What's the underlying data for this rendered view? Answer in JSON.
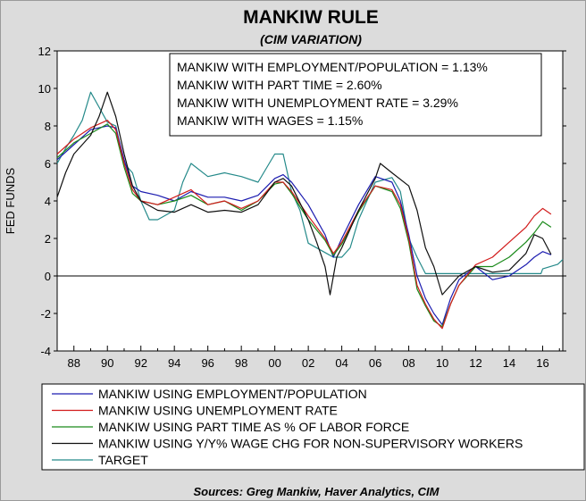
{
  "chart_data": {
    "type": "line",
    "title": "MANKIW RULE",
    "subtitle": "(CIM VARIATION)",
    "ylabel": "FED FUNDS",
    "xlabel": "",
    "source": "Sources:  Greg Mankiw, Haver Analytics, CIM",
    "ylim": [
      -4,
      12
    ],
    "xlim": [
      1987.0,
      2017.2
    ],
    "y_ticks": [
      12,
      10,
      8,
      6,
      4,
      2,
      0,
      -2,
      -4
    ],
    "x_ticks": [
      {
        "x": 1988,
        "label": "88"
      },
      {
        "x": 1990,
        "label": "90"
      },
      {
        "x": 1992,
        "label": "92"
      },
      {
        "x": 1994,
        "label": "94"
      },
      {
        "x": 1996,
        "label": "96"
      },
      {
        "x": 1998,
        "label": "98"
      },
      {
        "x": 2000,
        "label": "00"
      },
      {
        "x": 2002,
        "label": "02"
      },
      {
        "x": 2004,
        "label": "04"
      },
      {
        "x": 2006,
        "label": "06"
      },
      {
        "x": 2008,
        "label": "08"
      },
      {
        "x": 2010,
        "label": "10"
      },
      {
        "x": 2012,
        "label": "12"
      },
      {
        "x": 2014,
        "label": "14"
      },
      {
        "x": 2016,
        "label": "16"
      }
    ],
    "annotation": [
      "MANKIW WITH EMPLOYMENT/POPULATION = 1.13%",
      "MANKIW WITH PART TIME = 2.60%",
      "MANKIW WITH UNEMPLOYMENT RATE = 3.29%",
      "MANKIW WITH WAGES = 1.15%"
    ],
    "grid": false,
    "zero_line": true,
    "legend_position": "bottom",
    "series": [
      {
        "name": "MANKIW USING EMPLOYMENT/POPULATION",
        "color": "#1c1cb0",
        "points": [
          [
            1987.0,
            6.2
          ],
          [
            1988.0,
            7.0
          ],
          [
            1989.0,
            7.8
          ],
          [
            1990.0,
            8.0
          ],
          [
            1990.5,
            7.9
          ],
          [
            1991.0,
            6.2
          ],
          [
            1991.5,
            4.8
          ],
          [
            1992.0,
            4.5
          ],
          [
            1993.0,
            4.3
          ],
          [
            1994.0,
            4.0
          ],
          [
            1995.0,
            4.5
          ],
          [
            1996.0,
            4.2
          ],
          [
            1997.0,
            4.2
          ],
          [
            1998.0,
            4.0
          ],
          [
            1999.0,
            4.3
          ],
          [
            2000.0,
            5.2
          ],
          [
            2000.5,
            5.4
          ],
          [
            2001.0,
            5.0
          ],
          [
            2002.0,
            3.8
          ],
          [
            2003.0,
            2.2
          ],
          [
            2003.5,
            1.0
          ],
          [
            2004.0,
            2.0
          ],
          [
            2005.0,
            3.8
          ],
          [
            2006.0,
            5.3
          ],
          [
            2007.0,
            5.0
          ],
          [
            2007.5,
            4.0
          ],
          [
            2008.0,
            2.2
          ],
          [
            2008.5,
            0.0
          ],
          [
            2009.0,
            -1.2
          ],
          [
            2009.5,
            -2.0
          ],
          [
            2010.0,
            -2.6
          ],
          [
            2010.5,
            -1.2
          ],
          [
            2011.0,
            -0.2
          ],
          [
            2012.0,
            0.5
          ],
          [
            2013.0,
            -0.2
          ],
          [
            2014.0,
            0.0
          ],
          [
            2015.0,
            0.6
          ],
          [
            2015.5,
            1.0
          ],
          [
            2016.0,
            1.3
          ],
          [
            2016.5,
            1.13
          ]
        ]
      },
      {
        "name": "MANKIW USING UNEMPLOYMENT RATE",
        "color": "#d21c1c",
        "points": [
          [
            1987.0,
            6.5
          ],
          [
            1988.0,
            7.3
          ],
          [
            1989.0,
            7.9
          ],
          [
            1990.0,
            8.3
          ],
          [
            1990.5,
            7.8
          ],
          [
            1991.0,
            6.0
          ],
          [
            1991.5,
            4.6
          ],
          [
            1992.0,
            4.0
          ],
          [
            1993.0,
            3.8
          ],
          [
            1994.0,
            4.2
          ],
          [
            1995.0,
            4.6
          ],
          [
            1996.0,
            3.8
          ],
          [
            1997.0,
            4.0
          ],
          [
            1998.0,
            3.6
          ],
          [
            1999.0,
            4.0
          ],
          [
            2000.0,
            5.0
          ],
          [
            2000.5,
            5.0
          ],
          [
            2001.0,
            4.5
          ],
          [
            2002.0,
            3.2
          ],
          [
            2003.0,
            2.0
          ],
          [
            2003.5,
            1.2
          ],
          [
            2004.0,
            1.8
          ],
          [
            2005.0,
            3.5
          ],
          [
            2006.0,
            4.8
          ],
          [
            2007.0,
            4.6
          ],
          [
            2007.5,
            3.8
          ],
          [
            2008.0,
            2.0
          ],
          [
            2008.5,
            -0.5
          ],
          [
            2009.0,
            -1.5
          ],
          [
            2009.5,
            -2.3
          ],
          [
            2010.0,
            -2.8
          ],
          [
            2010.5,
            -1.5
          ],
          [
            2011.0,
            -0.5
          ],
          [
            2012.0,
            0.6
          ],
          [
            2013.0,
            1.0
          ],
          [
            2014.0,
            1.8
          ],
          [
            2015.0,
            2.6
          ],
          [
            2015.5,
            3.2
          ],
          [
            2016.0,
            3.6
          ],
          [
            2016.5,
            3.29
          ]
        ]
      },
      {
        "name": "MANKIW USING PART TIME AS % OF LABOR FORCE",
        "color": "#1a8a1a",
        "points": [
          [
            1987.0,
            6.3
          ],
          [
            1988.0,
            7.1
          ],
          [
            1989.0,
            7.6
          ],
          [
            1990.0,
            8.1
          ],
          [
            1990.5,
            7.6
          ],
          [
            1991.0,
            5.8
          ],
          [
            1991.5,
            4.4
          ],
          [
            1992.0,
            4.0
          ],
          [
            1993.0,
            3.8
          ],
          [
            1994.0,
            4.0
          ],
          [
            1995.0,
            4.3
          ],
          [
            1996.0,
            3.8
          ],
          [
            1997.0,
            4.0
          ],
          [
            1998.0,
            3.5
          ],
          [
            1999.0,
            4.0
          ],
          [
            2000.0,
            4.9
          ],
          [
            2000.5,
            5.0
          ],
          [
            2001.0,
            4.4
          ],
          [
            2002.0,
            3.0
          ],
          [
            2003.0,
            1.9
          ],
          [
            2003.5,
            1.1
          ],
          [
            2004.0,
            1.7
          ],
          [
            2005.0,
            3.4
          ],
          [
            2006.0,
            4.8
          ],
          [
            2007.0,
            4.5
          ],
          [
            2007.5,
            3.6
          ],
          [
            2008.0,
            1.8
          ],
          [
            2008.5,
            -0.7
          ],
          [
            2009.0,
            -1.6
          ],
          [
            2009.5,
            -2.4
          ],
          [
            2010.0,
            -2.7
          ],
          [
            2010.5,
            -1.5
          ],
          [
            2011.0,
            -0.5
          ],
          [
            2012.0,
            0.5
          ],
          [
            2013.0,
            0.5
          ],
          [
            2014.0,
            1.0
          ],
          [
            2015.0,
            1.8
          ],
          [
            2015.5,
            2.3
          ],
          [
            2016.0,
            2.9
          ],
          [
            2016.5,
            2.6
          ]
        ]
      },
      {
        "name": "MANKIW USING Y/Y% WAGE CHG FOR NON-SUPERVISORY WORKERS",
        "color": "#101010",
        "points": [
          [
            1987.0,
            4.2
          ],
          [
            1987.5,
            5.5
          ],
          [
            1988.0,
            6.5
          ],
          [
            1989.0,
            7.5
          ],
          [
            1989.5,
            8.5
          ],
          [
            1990.0,
            9.8
          ],
          [
            1990.5,
            8.5
          ],
          [
            1991.0,
            6.5
          ],
          [
            1991.5,
            4.8
          ],
          [
            1992.0,
            4.0
          ],
          [
            1993.0,
            3.5
          ],
          [
            1994.0,
            3.4
          ],
          [
            1995.0,
            3.8
          ],
          [
            1996.0,
            3.4
          ],
          [
            1997.0,
            3.5
          ],
          [
            1998.0,
            3.4
          ],
          [
            1999.0,
            3.8
          ],
          [
            2000.0,
            5.0
          ],
          [
            2000.5,
            5.2
          ],
          [
            2001.0,
            4.8
          ],
          [
            2002.0,
            3.0
          ],
          [
            2002.5,
            1.8
          ],
          [
            2003.0,
            0.5
          ],
          [
            2003.3,
            -1.0
          ],
          [
            2003.7,
            1.0
          ],
          [
            2004.0,
            1.5
          ],
          [
            2005.0,
            3.5
          ],
          [
            2006.0,
            5.2
          ],
          [
            2006.3,
            6.0
          ],
          [
            2007.0,
            5.5
          ],
          [
            2008.0,
            4.8
          ],
          [
            2008.5,
            3.5
          ],
          [
            2009.0,
            1.5
          ],
          [
            2009.5,
            0.5
          ],
          [
            2010.0,
            -1.0
          ],
          [
            2010.5,
            -0.5
          ],
          [
            2011.0,
            0.0
          ],
          [
            2012.0,
            0.5
          ],
          [
            2013.0,
            0.2
          ],
          [
            2014.0,
            0.3
          ],
          [
            2015.0,
            1.2
          ],
          [
            2015.5,
            2.2
          ],
          [
            2016.0,
            2.0
          ],
          [
            2016.5,
            1.15
          ]
        ]
      },
      {
        "name": "TARGET",
        "color": "#258a8a",
        "points": [
          [
            1987.0,
            6.0
          ],
          [
            1987.5,
            6.8
          ],
          [
            1988.0,
            7.5
          ],
          [
            1988.5,
            8.3
          ],
          [
            1989.0,
            9.8
          ],
          [
            1989.5,
            9.0
          ],
          [
            1990.0,
            8.2
          ],
          [
            1990.5,
            8.0
          ],
          [
            1991.0,
            6.0
          ],
          [
            1991.5,
            5.5
          ],
          [
            1992.0,
            4.0
          ],
          [
            1992.5,
            3.0
          ],
          [
            1993.0,
            3.0
          ],
          [
            1994.0,
            3.5
          ],
          [
            1994.5,
            5.0
          ],
          [
            1995.0,
            6.0
          ],
          [
            1996.0,
            5.3
          ],
          [
            1997.0,
            5.5
          ],
          [
            1998.0,
            5.3
          ],
          [
            1999.0,
            5.0
          ],
          [
            2000.0,
            6.5
          ],
          [
            2000.5,
            6.5
          ],
          [
            2001.0,
            4.5
          ],
          [
            2001.5,
            3.5
          ],
          [
            2002.0,
            1.75
          ],
          [
            2003.0,
            1.25
          ],
          [
            2003.5,
            1.0
          ],
          [
            2004.0,
            1.0
          ],
          [
            2004.5,
            1.5
          ],
          [
            2005.0,
            3.0
          ],
          [
            2006.0,
            5.0
          ],
          [
            2007.0,
            5.25
          ],
          [
            2007.5,
            4.5
          ],
          [
            2008.0,
            2.0
          ],
          [
            2008.5,
            1.0
          ],
          [
            2009.0,
            0.125
          ],
          [
            2015.9,
            0.125
          ],
          [
            2016.0,
            0.375
          ],
          [
            2016.9,
            0.625
          ],
          [
            2017.2,
            0.875
          ]
        ]
      }
    ]
  }
}
